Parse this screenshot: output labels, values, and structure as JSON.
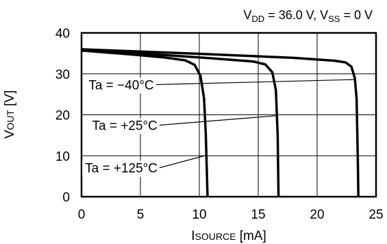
{
  "chart_data": {
    "type": "line",
    "note": {
      "p1": "V",
      "p1_sub": "DD",
      "p2": " = 36.0 V, V",
      "p2_sub": "SS",
      "p3": " = 0 V"
    },
    "xlabel": {
      "main": "I",
      "sub": "SOURCE",
      "unit": " [mA]"
    },
    "ylabel": {
      "main": "V",
      "sub": "OUT",
      "unit": " [V]"
    },
    "xlim": [
      0,
      25
    ],
    "ylim": [
      0,
      40
    ],
    "xticks": [
      0,
      5,
      10,
      15,
      20,
      25
    ],
    "yticks": [
      0,
      10,
      20,
      30,
      40
    ],
    "grid": true,
    "series": [
      {
        "name": "Ta = −40°C",
        "points": [
          [
            0,
            36.0
          ],
          [
            10,
            34.9
          ],
          [
            18,
            33.9
          ],
          [
            21.5,
            33.2
          ],
          [
            22.4,
            32.8
          ],
          [
            22.9,
            31.8
          ],
          [
            23.2,
            29.0
          ],
          [
            23.35,
            24.0
          ],
          [
            23.45,
            10.0
          ],
          [
            23.5,
            0
          ]
        ]
      },
      {
        "name": "Ta = +25°C",
        "points": [
          [
            0,
            35.9
          ],
          [
            6,
            34.8
          ],
          [
            11,
            33.8
          ],
          [
            14.6,
            33.0
          ],
          [
            15.6,
            32.3
          ],
          [
            16.2,
            30.4
          ],
          [
            16.5,
            26.0
          ],
          [
            16.65,
            15.0
          ],
          [
            16.72,
            0
          ]
        ]
      },
      {
        "name": "Ta = +125°C",
        "points": [
          [
            0,
            35.7
          ],
          [
            4,
            34.8
          ],
          [
            7,
            34.0
          ],
          [
            8.8,
            33.3
          ],
          [
            9.6,
            32.2
          ],
          [
            10.1,
            29.5
          ],
          [
            10.4,
            24.0
          ],
          [
            10.55,
            15.0
          ],
          [
            10.7,
            0
          ]
        ]
      }
    ],
    "annotations": [
      {
        "text": "Ta = −40°C",
        "label_at": [
          0.6,
          26.2
        ],
        "arrow_to": [
          23.15,
          28.6
        ]
      },
      {
        "text": "Ta = +25°C",
        "label_at": [
          0.9,
          16.3
        ],
        "arrow_to": [
          16.6,
          19.8
        ]
      },
      {
        "text": "Ta = +125°C",
        "label_at": [
          0.3,
          5.9
        ],
        "arrow_to": [
          10.45,
          10.0
        ]
      }
    ]
  }
}
